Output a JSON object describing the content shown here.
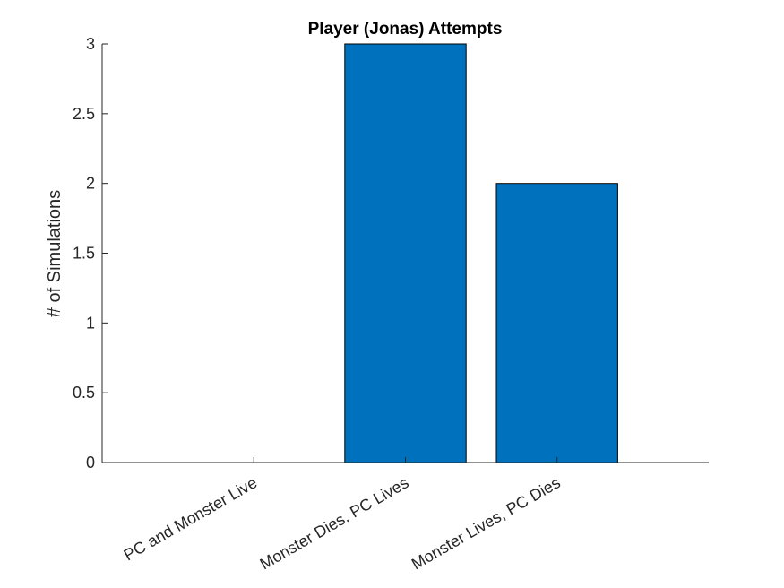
{
  "chart_data": {
    "type": "bar",
    "title": "Player (Jonas) Attempts",
    "xlabel": "",
    "ylabel": "# of Simulations",
    "categories": [
      "PC and Monster Live",
      "Monster Dies, PC Lives",
      "Monster Lives, PC Dies"
    ],
    "values": [
      0,
      3,
      2
    ],
    "ylim": [
      0,
      3
    ],
    "yticks": [
      0,
      0.5,
      1,
      1.5,
      2,
      2.5,
      3
    ],
    "ytick_labels": [
      "0",
      "0.5",
      "1",
      "1.5",
      "2",
      "2.5",
      "3"
    ],
    "grid": false,
    "legend": "none",
    "bar_color": "#0072BD",
    "bar_edge_color": "#000000",
    "axis_color": "#262626"
  }
}
